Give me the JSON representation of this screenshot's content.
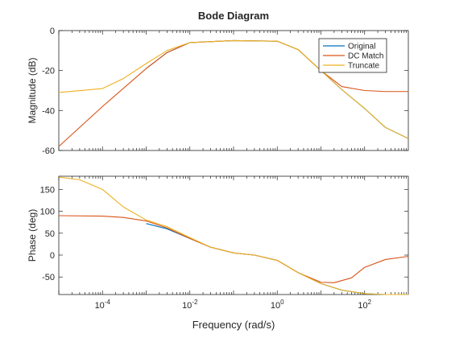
{
  "chart_data": {
    "type": "line",
    "title": "Bode Diagram",
    "xlabel": "Frequency (rad/s)",
    "xscale": "log",
    "xlim": [
      1e-05,
      1000
    ],
    "x_ticks": [
      {
        "value": 0.0001,
        "base": "10",
        "exp": "-4"
      },
      {
        "value": 0.01,
        "base": "10",
        "exp": "-2"
      },
      {
        "value": 1,
        "base": "10",
        "exp": "0"
      },
      {
        "value": 100,
        "base": "10",
        "exp": "2"
      }
    ],
    "grid": false,
    "legend_position": "top-right",
    "legend": [
      "Original",
      "DC Match",
      "Truncate"
    ],
    "series_colors": [
      "#0072BD",
      "#D95319",
      "#EDB120"
    ],
    "magnitude": {
      "ylabel": "Magnitude (dB)",
      "ylim": [
        -60,
        0
      ],
      "yticks": [
        "0",
        "-20",
        "-40",
        "-60"
      ],
      "ytick_values": [
        0,
        -20,
        -40,
        -60
      ],
      "series": [
        {
          "name": "Original",
          "color": "#0072BD",
          "x": [
            0.001,
            0.003,
            0.01,
            0.1,
            1,
            3,
            10,
            30,
            100,
            300,
            1000
          ],
          "y": [
            -19,
            -11,
            -6,
            -5,
            -5.3,
            -9.5,
            -20,
            -29.5,
            -39,
            -48.5,
            -54
          ]
        },
        {
          "name": "DC Match",
          "color": "#D95319",
          "x": [
            1e-05,
            0.0001,
            0.001,
            0.003,
            0.01,
            0.1,
            1,
            3,
            10,
            30,
            100,
            300,
            1000
          ],
          "y": [
            -58,
            -38,
            -19,
            -11,
            -6,
            -5,
            -5.3,
            -9.5,
            -20,
            -28,
            -30,
            -30.5,
            -30.5
          ]
        },
        {
          "name": "Truncate",
          "color": "#EDB120",
          "x": [
            1e-05,
            0.0001,
            0.0003,
            0.001,
            0.003,
            0.01,
            0.1,
            1,
            3,
            10,
            30,
            100,
            300,
            1000
          ],
          "y": [
            -31,
            -29,
            -24,
            -16.5,
            -10,
            -6,
            -5,
            -5.3,
            -9.5,
            -20,
            -29.5,
            -39,
            -48.5,
            -54
          ]
        }
      ]
    },
    "phase": {
      "ylabel": "Phase (deg)",
      "ylim": [
        -90,
        180
      ],
      "yticks": [
        "150",
        "100",
        "50",
        "0",
        "-50"
      ],
      "ytick_values": [
        150,
        100,
        50,
        0,
        -50
      ],
      "series": [
        {
          "name": "Original",
          "color": "#0072BD",
          "x": [
            0.001,
            0.003,
            0.01,
            0.03,
            0.1,
            0.3,
            1,
            3,
            10,
            30,
            100,
            300,
            1000
          ],
          "y": [
            72,
            60,
            38,
            18,
            5,
            0,
            -12,
            -40,
            -65,
            -80,
            -88,
            -90,
            -90
          ]
        },
        {
          "name": "DC Match",
          "color": "#D95319",
          "x": [
            1e-05,
            0.0001,
            0.0003,
            0.001,
            0.003,
            0.01,
            0.03,
            0.1,
            0.3,
            1,
            3,
            10,
            20,
            50,
            100,
            300,
            1000
          ],
          "y": [
            90,
            89,
            86,
            78,
            62,
            38,
            18,
            5,
            0,
            -12,
            -40,
            -62,
            -63,
            -52,
            -28,
            -10,
            -3
          ]
        },
        {
          "name": "Truncate",
          "color": "#EDB120",
          "x": [
            1e-05,
            3e-05,
            0.0001,
            0.0003,
            0.001,
            0.003,
            0.01,
            0.03,
            0.1,
            0.3,
            1,
            3,
            10,
            30,
            100,
            300,
            1000
          ],
          "y": [
            178,
            172,
            150,
            110,
            80,
            65,
            40,
            18,
            5,
            0,
            -12,
            -40,
            -65,
            -80,
            -88,
            -90,
            -90
          ]
        }
      ]
    }
  }
}
